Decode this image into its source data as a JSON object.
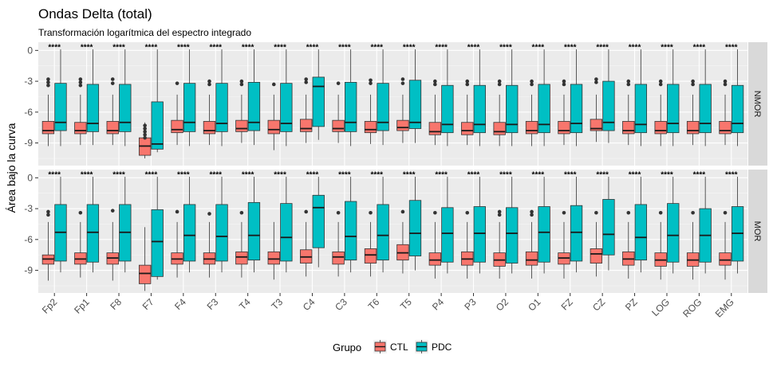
{
  "chart_data": {
    "type": "boxplot",
    "title": "Ondas Delta (total)",
    "subtitle": "Transformación logarítmica del espectro integrado",
    "ylabel": "Área bajo la curva",
    "xlabel": "",
    "ylim": [
      -11.2,
      0.8
    ],
    "yticks": [
      0,
      -3,
      -6,
      -9
    ],
    "categories": [
      "Fp2",
      "Fp1",
      "F8",
      "F7",
      "F4",
      "F3",
      "T4",
      "T3",
      "C4",
      "C3",
      "T6",
      "T5",
      "P4",
      "P3",
      "O2",
      "O1",
      "FZ",
      "CZ",
      "PZ",
      "LOG",
      "ROG",
      "EMG"
    ],
    "significance_label": "****",
    "legend": {
      "title": "Grupo",
      "position": "bottom"
    },
    "groups": [
      {
        "name": "CTL",
        "color": "#F8766D"
      },
      {
        "name": "PDC",
        "color": "#00BFC4"
      }
    ],
    "facets": [
      {
        "label": "NMOR",
        "series": {
          "CTL": [
            [
              -9.3,
              -8.1,
              -7.8,
              -6.9,
              -4.3
            ],
            [
              -9.2,
              -8.1,
              -7.8,
              -7.0,
              -4.3
            ],
            [
              -9.2,
              -8.1,
              -7.8,
              -6.9,
              -4.3
            ],
            [
              -10.5,
              -10.2,
              -9.3,
              -8.5,
              -7.0
            ],
            [
              -9.2,
              -8.0,
              -7.7,
              -6.8,
              -4.3
            ],
            [
              -9.2,
              -8.1,
              -7.8,
              -6.9,
              -4.3
            ],
            [
              -9.0,
              -7.9,
              -7.6,
              -6.8,
              -4.3
            ],
            [
              -9.7,
              -8.1,
              -7.7,
              -6.8,
              -4.3
            ],
            [
              -9.0,
              -7.9,
              -7.6,
              -6.7,
              -4.3
            ],
            [
              -9.0,
              -7.9,
              -7.6,
              -6.8,
              -4.3
            ],
            [
              -9.1,
              -8.0,
              -7.7,
              -6.9,
              -4.3
            ],
            [
              -9.0,
              -7.8,
              -7.5,
              -6.8,
              -4.3
            ],
            [
              -9.2,
              -8.2,
              -7.9,
              -7.0,
              -4.3
            ],
            [
              -9.2,
              -8.2,
              -7.8,
              -7.0,
              -4.3
            ],
            [
              -9.3,
              -8.2,
              -7.9,
              -7.0,
              -4.3
            ],
            [
              -9.3,
              -8.1,
              -7.8,
              -6.9,
              -4.3
            ],
            [
              -9.2,
              -8.1,
              -7.8,
              -6.9,
              -4.3
            ],
            [
              -8.9,
              -7.8,
              -7.6,
              -6.7,
              -4.3
            ],
            [
              -9.2,
              -8.1,
              -7.8,
              -6.9,
              -4.3
            ],
            [
              -9.3,
              -8.1,
              -7.8,
              -6.9,
              -4.3
            ],
            [
              -9.2,
              -8.1,
              -7.8,
              -6.9,
              -4.3
            ],
            [
              -9.2,
              -8.1,
              -7.8,
              -6.9,
              -4.3
            ]
          ],
          "PDC": [
            [
              -9.3,
              -7.8,
              -7.0,
              -3.2,
              0.1
            ],
            [
              -9.2,
              -7.9,
              -7.1,
              -3.3,
              0.1
            ],
            [
              -9.3,
              -7.9,
              -7.0,
              -3.3,
              0.1
            ],
            [
              -9.9,
              -9.6,
              -9.1,
              -5.0,
              0.1
            ],
            [
              -9.3,
              -7.9,
              -7.0,
              -3.2,
              0.1
            ],
            [
              -9.3,
              -7.9,
              -7.1,
              -3.2,
              0.1
            ],
            [
              -9.2,
              -7.8,
              -7.0,
              -3.1,
              0.1
            ],
            [
              -9.3,
              -7.9,
              -7.1,
              -3.2,
              0.1
            ],
            [
              -8.7,
              -7.4,
              -3.5,
              -2.6,
              0.1
            ],
            [
              -9.3,
              -7.9,
              -7.0,
              -3.1,
              0.1
            ],
            [
              -9.2,
              -7.8,
              -7.0,
              -3.2,
              0.1
            ],
            [
              -9.0,
              -7.6,
              -7.0,
              -2.9,
              0.1
            ],
            [
              -9.3,
              -8.0,
              -7.2,
              -3.4,
              0.1
            ],
            [
              -9.3,
              -8.0,
              -7.2,
              -3.4,
              0.1
            ],
            [
              -9.3,
              -8.0,
              -7.2,
              -3.4,
              0.1
            ],
            [
              -9.3,
              -8.0,
              -7.2,
              -3.3,
              0.1
            ],
            [
              -9.3,
              -8.0,
              -7.1,
              -3.3,
              0.1
            ],
            [
              -9.0,
              -7.8,
              -7.0,
              -3.0,
              0.1
            ],
            [
              -9.3,
              -8.0,
              -7.2,
              -3.3,
              0.1
            ],
            [
              -9.3,
              -8.0,
              -7.1,
              -3.3,
              0.1
            ],
            [
              -9.3,
              -8.0,
              -7.1,
              -3.3,
              0.1
            ],
            [
              -9.3,
              -8.0,
              -7.1,
              -3.4,
              0.1
            ]
          ]
        }
      },
      {
        "label": "MOR",
        "series": {
          "CTL": [
            [
              -10.0,
              -8.4,
              -7.9,
              -7.5,
              -4.3
            ],
            [
              -9.7,
              -8.4,
              -7.9,
              -7.3,
              -4.3
            ],
            [
              -10.0,
              -8.4,
              -7.8,
              -7.3,
              -4.3
            ],
            [
              -11.0,
              -10.3,
              -9.3,
              -8.5,
              -4.8
            ],
            [
              -9.7,
              -8.4,
              -7.9,
              -7.3,
              -4.3
            ],
            [
              -9.7,
              -8.4,
              -7.9,
              -7.3,
              -4.3
            ],
            [
              -9.7,
              -8.4,
              -7.7,
              -7.2,
              -4.3
            ],
            [
              -9.9,
              -8.4,
              -7.9,
              -7.2,
              -4.3
            ],
            [
              -9.6,
              -8.3,
              -7.7,
              -7.0,
              -4.3
            ],
            [
              -9.6,
              -8.4,
              -7.7,
              -7.2,
              -4.3
            ],
            [
              -9.6,
              -8.3,
              -7.5,
              -6.9,
              -4.3
            ],
            [
              -9.3,
              -8.0,
              -7.3,
              -6.5,
              -4.3
            ],
            [
              -9.8,
              -8.5,
              -8.0,
              -7.3,
              -4.3
            ],
            [
              -9.8,
              -8.5,
              -7.9,
              -7.2,
              -4.3
            ],
            [
              -9.8,
              -8.6,
              -8.0,
              -7.3,
              -4.3
            ],
            [
              -9.8,
              -8.5,
              -8.0,
              -7.2,
              -4.3
            ],
            [
              -9.8,
              -8.4,
              -7.8,
              -7.3,
              -4.3
            ],
            [
              -9.6,
              -8.3,
              -7.4,
              -6.9,
              -4.3
            ],
            [
              -9.8,
              -8.5,
              -7.9,
              -7.2,
              -4.3
            ],
            [
              -9.9,
              -8.6,
              -8.0,
              -7.3,
              -4.3
            ],
            [
              -9.9,
              -8.6,
              -8.0,
              -7.3,
              -4.3
            ],
            [
              -9.9,
              -8.5,
              -8.0,
              -7.3,
              -4.3
            ]
          ],
          "PDC": [
            [
              -9.2,
              -8.1,
              -5.3,
              -2.6,
              0.1
            ],
            [
              -9.2,
              -8.2,
              -5.3,
              -2.6,
              0.1
            ],
            [
              -9.2,
              -8.1,
              -5.3,
              -2.6,
              0.1
            ],
            [
              -9.9,
              -9.6,
              -6.2,
              -3.1,
              0.1
            ],
            [
              -9.2,
              -8.1,
              -5.6,
              -2.6,
              0.1
            ],
            [
              -9.2,
              -8.1,
              -5.7,
              -2.6,
              0.1
            ],
            [
              -9.2,
              -8.0,
              -5.6,
              -2.4,
              0.1
            ],
            [
              -9.2,
              -8.1,
              -5.8,
              -2.5,
              0.1
            ],
            [
              -8.7,
              -6.8,
              -2.9,
              -1.7,
              0.1
            ],
            [
              -9.2,
              -8.0,
              -5.7,
              -2.3,
              0.1
            ],
            [
              -9.2,
              -8.0,
              -5.6,
              -2.6,
              0.1
            ],
            [
              -9.0,
              -7.6,
              -5.4,
              -2.2,
              0.1
            ],
            [
              -9.3,
              -8.2,
              -5.4,
              -2.9,
              0.1
            ],
            [
              -9.3,
              -8.2,
              -5.4,
              -2.8,
              0.1
            ],
            [
              -9.3,
              -8.3,
              -5.4,
              -2.9,
              0.1
            ],
            [
              -9.3,
              -8.2,
              -5.3,
              -2.8,
              0.1
            ],
            [
              -9.2,
              -8.1,
              -5.3,
              -2.7,
              0.1
            ],
            [
              -9.0,
              -7.5,
              -5.5,
              -2.1,
              0.1
            ],
            [
              -9.2,
              -8.0,
              -5.8,
              -2.6,
              0.1
            ],
            [
              -9.3,
              -8.2,
              -5.6,
              -2.5,
              0.1
            ],
            [
              -9.3,
              -8.2,
              -5.6,
              -3.0,
              0.1
            ],
            [
              -9.3,
              -8.1,
              -5.4,
              -2.8,
              0.1
            ]
          ]
        }
      }
    ],
    "outliers": {
      "NMOR": {
        "CTL": [
          [
            -2.8,
            -3.1,
            -3.4
          ],
          [
            -2.8,
            -3.1,
            -3.4
          ],
          [
            -2.8,
            -3.2
          ],
          [
            -7.3,
            -7.6,
            -7.9,
            -8.2,
            -8.5
          ],
          [
            -3.2
          ],
          [
            -3.0,
            -3.3
          ],
          [
            -3.0,
            -3.3
          ],
          [
            -3.3
          ],
          [
            -2.8,
            -3.1
          ],
          [
            -3.2
          ],
          [
            -2.9,
            -3.2
          ],
          [
            -2.8,
            -3.2
          ],
          [
            -3.0,
            -3.3
          ],
          [
            -3.0,
            -3.3
          ],
          [
            -3.0,
            -3.3
          ],
          [
            -3.0,
            -3.3
          ],
          [
            -3.0,
            -3.3
          ],
          [
            -2.8,
            -3.1
          ],
          [
            -3.0,
            -3.3
          ],
          [
            -3.0,
            -3.3
          ],
          [
            -3.0,
            -3.3
          ],
          [
            -3.0,
            -3.3
          ]
        ],
        "PDC": [
          [],
          [],
          [],
          [],
          [],
          [],
          [],
          [],
          [],
          [],
          [],
          [],
          [],
          [],
          [],
          [],
          [],
          [],
          [],
          [],
          [],
          []
        ]
      },
      "MOR": {
        "CTL": [
          [
            -3.3,
            -3.6
          ],
          [
            -3.4
          ],
          [
            -3.2
          ],
          [],
          [
            -3.3
          ],
          [
            -3.5
          ],
          [
            -3.4
          ],
          [],
          [
            -3.3
          ],
          [
            -3.4
          ],
          [
            -3.4
          ],
          [
            -3.3
          ],
          [
            -3.4
          ],
          [
            -3.4
          ],
          [
            -3.3,
            -3.6
          ],
          [
            -3.3,
            -3.6
          ],
          [
            -3.4
          ],
          [
            -3.4
          ],
          [
            -3.4
          ],
          [
            -3.4
          ],
          [
            -3.4
          ],
          [
            -3.4
          ]
        ],
        "PDC": [
          [],
          [],
          [],
          [],
          [],
          [],
          [],
          [],
          [],
          [],
          [],
          [],
          [],
          [],
          [],
          [],
          [],
          [],
          [],
          [],
          [],
          []
        ]
      }
    }
  }
}
